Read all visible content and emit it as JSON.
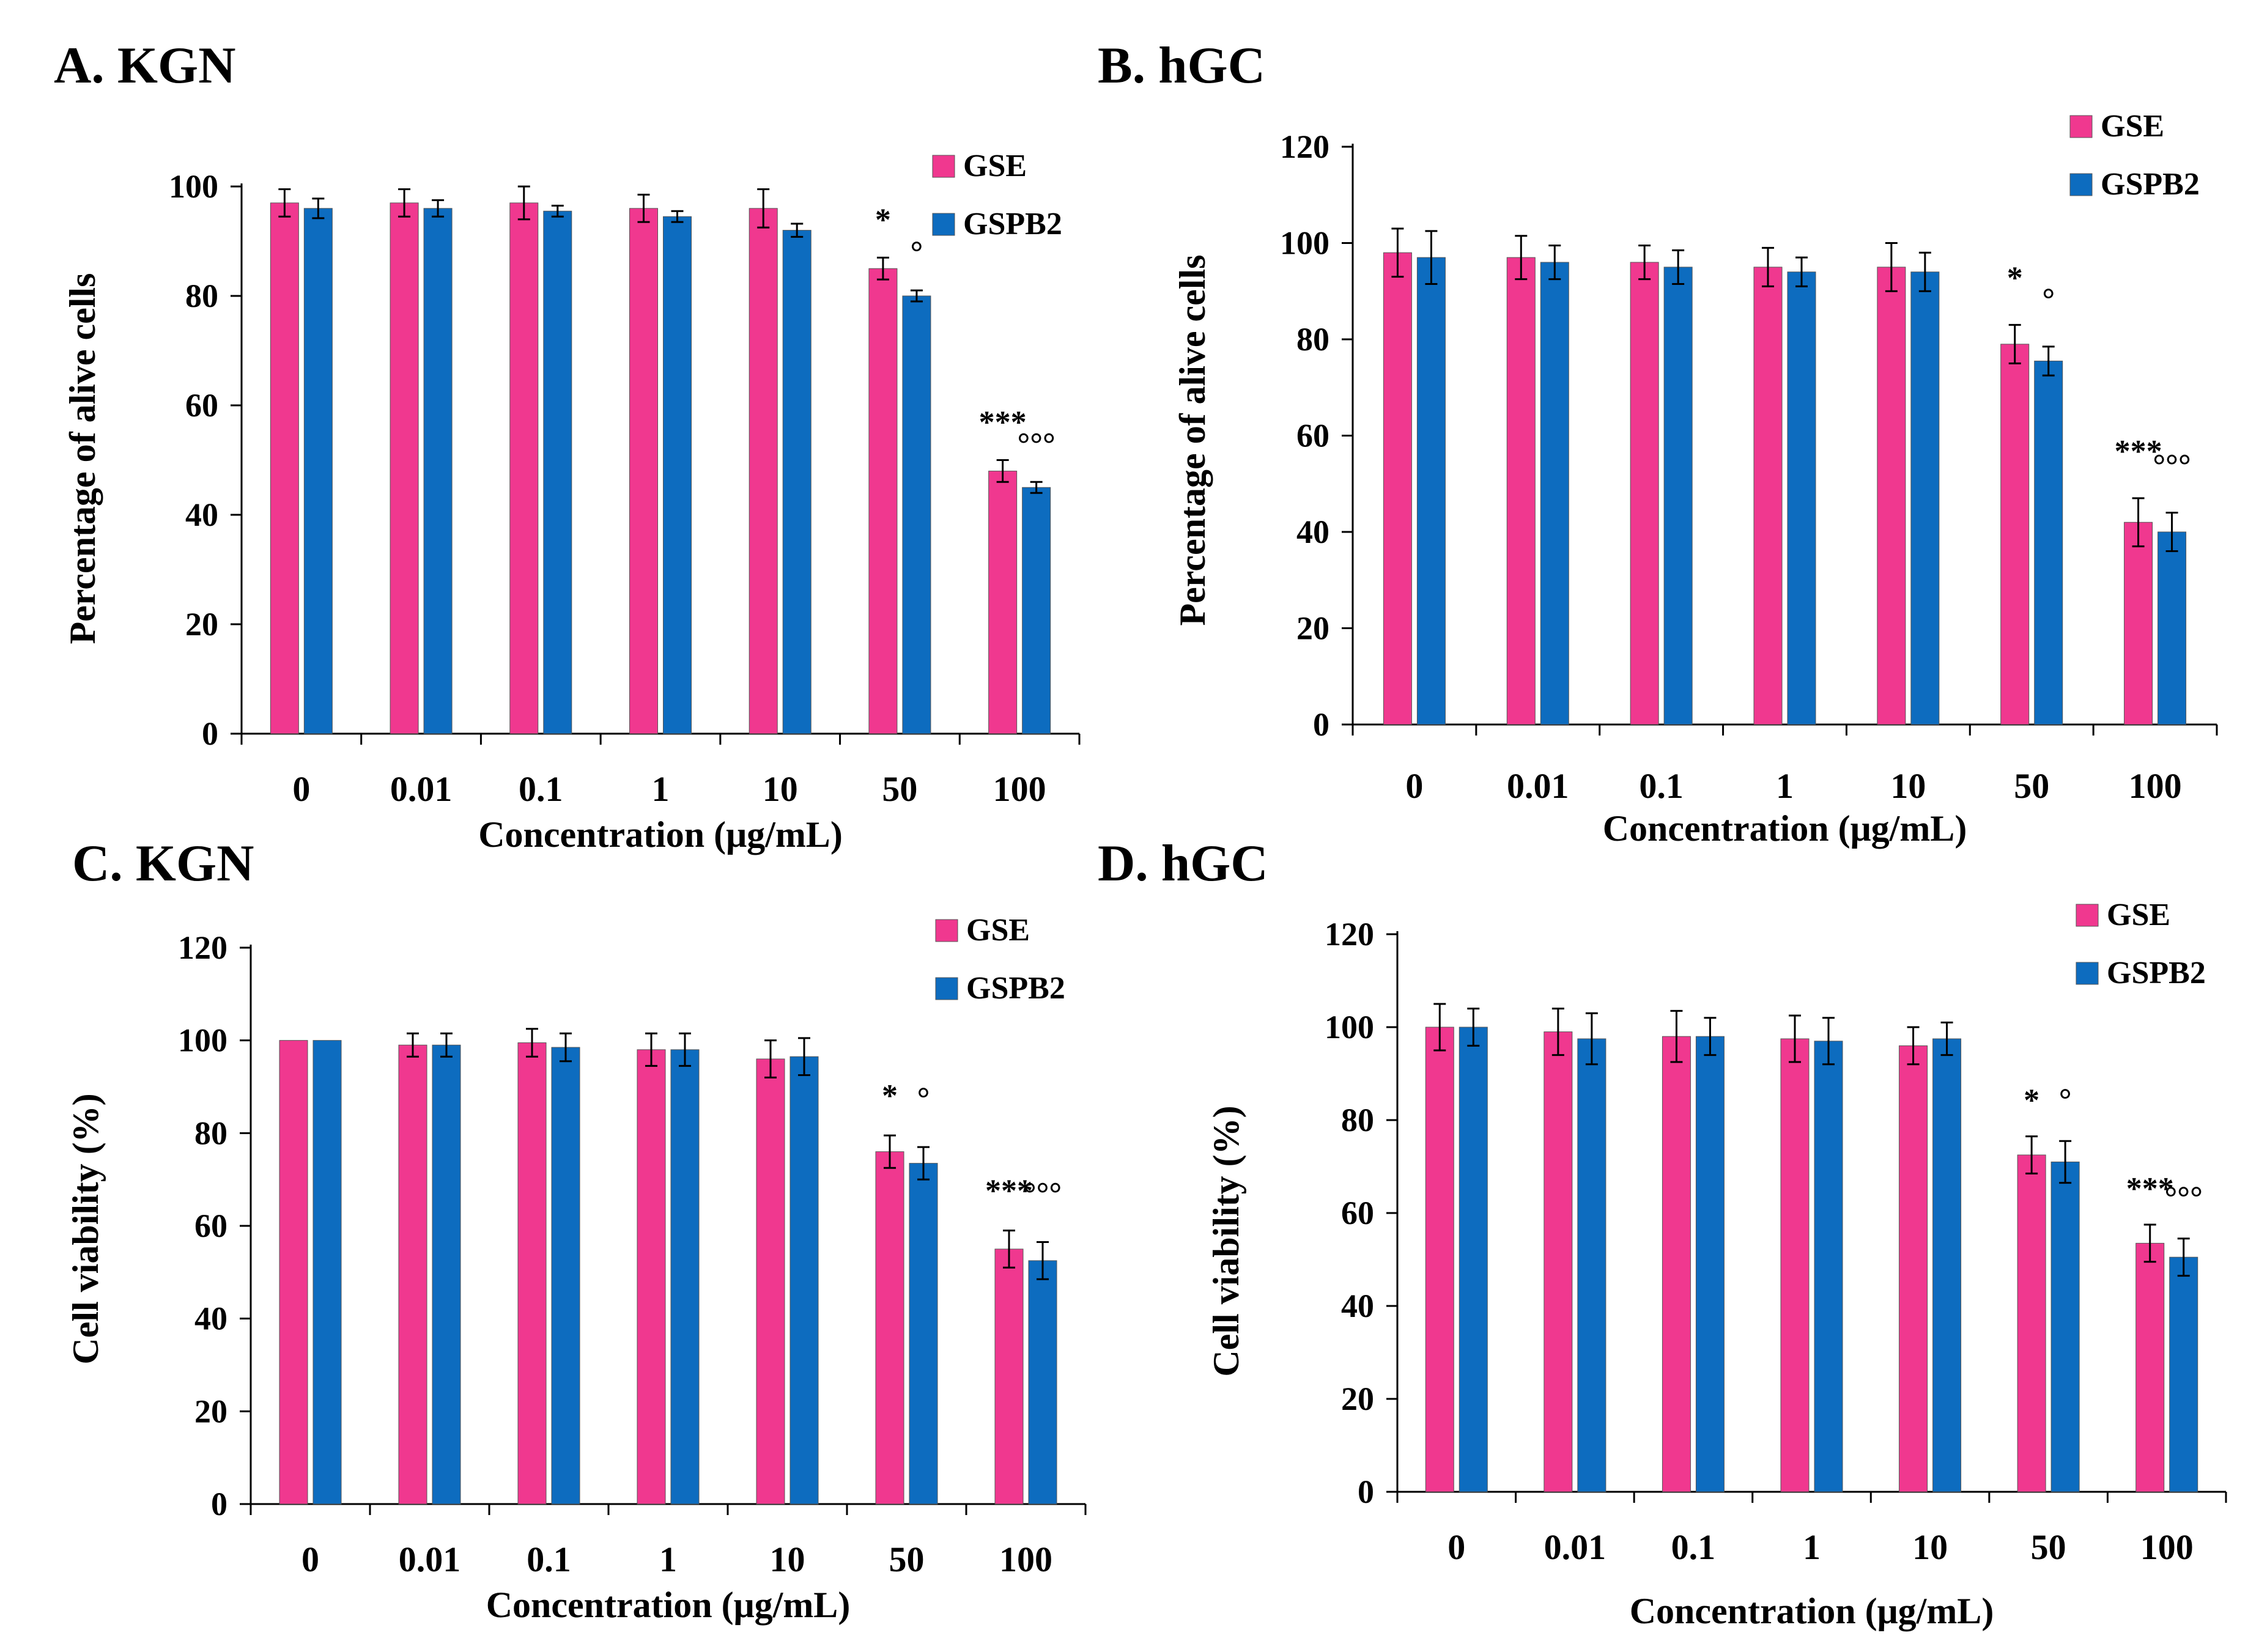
{
  "colors": {
    "GSE": "#f0388f",
    "GSPB2": "#0d6cbf",
    "axis": "#000000",
    "bar_edge": "#555555"
  },
  "chart_data": [
    {
      "type": "bar",
      "title": "A. KGN",
      "xlabel": "Concentration (μg/mL)",
      "ylabel": "Percentage of alive cells",
      "ylim": [
        0,
        100
      ],
      "yticks": [
        "0",
        "20",
        "40",
        "60",
        "80",
        "100"
      ],
      "grid": false,
      "legend_position": "top-right",
      "categories": [
        "0",
        "0.01",
        "0.1",
        "1",
        "10",
        "50",
        "100"
      ],
      "series": [
        {
          "name": "GSE",
          "values": [
            97,
            97,
            97,
            96,
            96,
            85,
            48
          ],
          "errors": [
            2.5,
            2.5,
            3,
            2.5,
            3.5,
            2,
            2
          ]
        },
        {
          "name": "GSPB2",
          "values": [
            96,
            96,
            95.5,
            94.5,
            92,
            80,
            45
          ],
          "errors": [
            1.8,
            1.5,
            1,
            1,
            1.2,
            1,
            1
          ]
        }
      ],
      "annotations": [
        {
          "category": "50",
          "series": "GSE",
          "text": "*"
        },
        {
          "category": "50",
          "series": "GSPB2",
          "text": "°"
        },
        {
          "category": "100",
          "series": "GSE",
          "text": "***"
        },
        {
          "category": "100",
          "series": "GSPB2",
          "text": "°°°"
        }
      ]
    },
    {
      "type": "bar",
      "title": "B. hGC",
      "xlabel": "Concentration (μg/mL)",
      "ylabel": "Percentage of alive cells",
      "ylim": [
        0,
        120
      ],
      "yticks": [
        "0",
        "20",
        "40",
        "60",
        "80",
        "100",
        "120"
      ],
      "grid": false,
      "legend_position": "top-right",
      "categories": [
        "0",
        "0.01",
        "0.1",
        "1",
        "10",
        "50",
        "100"
      ],
      "series": [
        {
          "name": "GSE",
          "values": [
            98,
            97,
            96,
            95,
            95,
            79,
            42
          ],
          "errors": [
            5,
            4.5,
            3.5,
            4,
            5,
            4,
            5
          ]
        },
        {
          "name": "GSPB2",
          "values": [
            97,
            96,
            95,
            94,
            94,
            75.5,
            40
          ],
          "errors": [
            5.5,
            3.5,
            3.5,
            3,
            4,
            3,
            4
          ]
        }
      ],
      "annotations": [
        {
          "category": "50",
          "series": "GSE",
          "text": "*"
        },
        {
          "category": "50",
          "series": "GSPB2",
          "text": "°"
        },
        {
          "category": "100",
          "series": "GSE",
          "text": "***"
        },
        {
          "category": "100",
          "series": "GSPB2",
          "text": "°°°"
        }
      ]
    },
    {
      "type": "bar",
      "title": "C. KGN",
      "xlabel": "Concentration (μg/mL)",
      "ylabel": "Cell viability (%)",
      "ylim": [
        0,
        120
      ],
      "yticks": [
        "0",
        "20",
        "40",
        "60",
        "80",
        "100",
        "120"
      ],
      "grid": false,
      "legend_position": "top-right",
      "categories": [
        "0",
        "0.01",
        "0.1",
        "1",
        "10",
        "50",
        "100"
      ],
      "series": [
        {
          "name": "GSE",
          "values": [
            100,
            99,
            99.5,
            98,
            96,
            76,
            55
          ],
          "errors": [
            0,
            2.5,
            3,
            3.5,
            4,
            3.5,
            4
          ]
        },
        {
          "name": "GSPB2",
          "values": [
            100,
            99,
            98.5,
            98,
            96.5,
            73.5,
            52.5
          ],
          "errors": [
            0,
            2.5,
            3,
            3.5,
            4,
            3.5,
            4
          ]
        }
      ],
      "annotations": [
        {
          "category": "50",
          "series": "GSE",
          "text": "*"
        },
        {
          "category": "50",
          "series": "GSPB2",
          "text": "°"
        },
        {
          "category": "100",
          "series": "GSE",
          "text": "***"
        },
        {
          "category": "100",
          "series": "GSPB2",
          "text": "°°°"
        }
      ]
    },
    {
      "type": "bar",
      "title": "D. hGC",
      "xlabel": "Concentration (μg/mL)",
      "ylabel": "Cell viability (%)",
      "ylim": [
        0,
        120
      ],
      "yticks": [
        "0",
        "20",
        "40",
        "60",
        "80",
        "100",
        "120"
      ],
      "grid": false,
      "legend_position": "top-right",
      "categories": [
        "0",
        "0.01",
        "0.1",
        "1",
        "10",
        "50",
        "100"
      ],
      "series": [
        {
          "name": "GSE",
          "values": [
            100,
            99,
            98,
            97.5,
            96,
            72.5,
            53.5
          ],
          "errors": [
            5,
            5,
            5.5,
            5,
            4,
            4,
            4
          ]
        },
        {
          "name": "GSPB2",
          "values": [
            100,
            97.5,
            98,
            97,
            97.5,
            71,
            50.5
          ],
          "errors": [
            4,
            5.5,
            4,
            5,
            3.5,
            4.5,
            4
          ]
        }
      ],
      "annotations": [
        {
          "category": "50",
          "series": "GSE",
          "text": "*"
        },
        {
          "category": "50",
          "series": "GSPB2",
          "text": "°"
        },
        {
          "category": "100",
          "series": "GSE",
          "text": "***"
        },
        {
          "category": "100",
          "series": "GSPB2",
          "text": "°°°"
        }
      ]
    }
  ]
}
